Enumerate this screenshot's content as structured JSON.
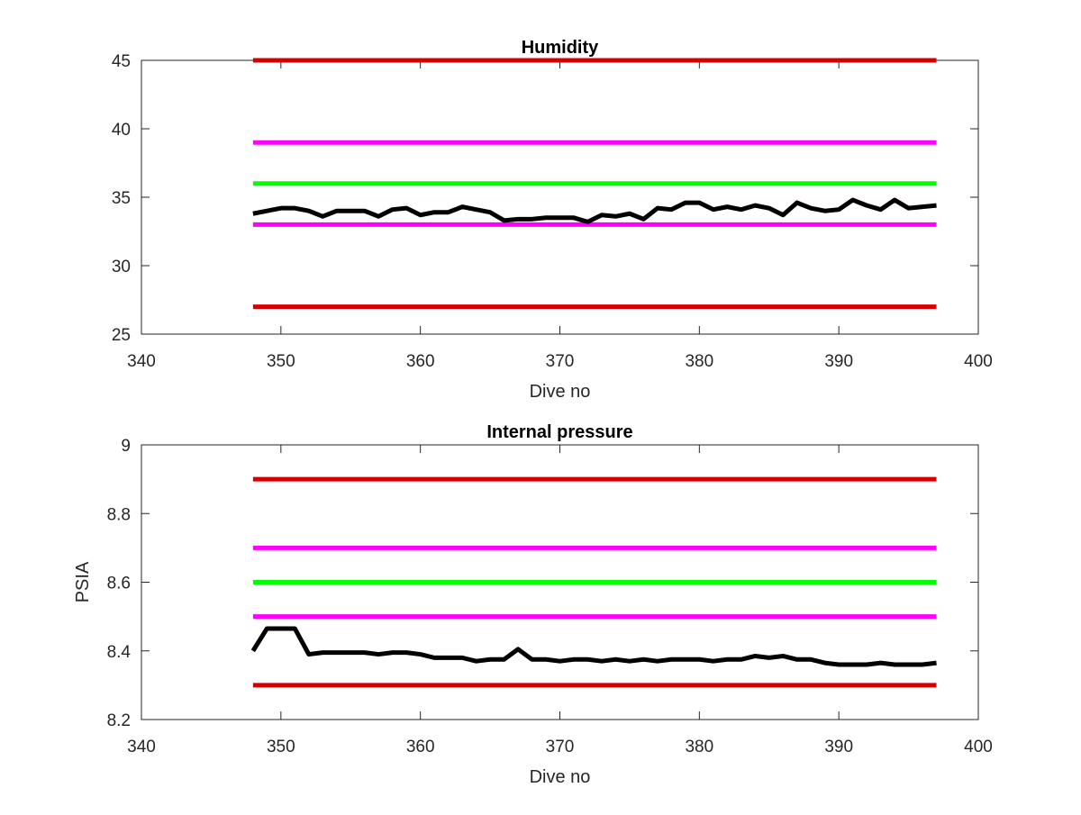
{
  "chart_data": [
    {
      "type": "line",
      "title": "Humidity",
      "xlabel": "Dive no",
      "ylabel": "",
      "xlim": [
        340,
        400
      ],
      "ylim": [
        25,
        45
      ],
      "xticks": [
        340,
        350,
        360,
        370,
        380,
        390,
        400
      ],
      "yticks": [
        25,
        30,
        35,
        40,
        45
      ],
      "grid": false,
      "colors": {
        "black": "#000000",
        "red": "#d40000",
        "magenta": "#ff00ff",
        "green": "#00ff00"
      },
      "thresholds": [
        {
          "y": 45,
          "color": "#d40000",
          "x_range": [
            348,
            397
          ]
        },
        {
          "y": 39,
          "color": "#ff00ff",
          "x_range": [
            348,
            397
          ]
        },
        {
          "y": 36,
          "color": "#00ff00",
          "x_range": [
            348,
            397
          ]
        },
        {
          "y": 33,
          "color": "#ff00ff",
          "x_range": [
            348,
            397
          ]
        },
        {
          "y": 27,
          "color": "#d40000",
          "x_range": [
            348,
            397
          ]
        }
      ],
      "series": [
        {
          "color": "#000000",
          "x": [
            348,
            349,
            350,
            351,
            352,
            353,
            354,
            355,
            356,
            357,
            358,
            359,
            360,
            361,
            362,
            363,
            364,
            365,
            366,
            367,
            368,
            369,
            370,
            371,
            372,
            373,
            374,
            375,
            376,
            377,
            378,
            379,
            380,
            381,
            382,
            383,
            384,
            385,
            386,
            387,
            388,
            389,
            390,
            391,
            392,
            393,
            394,
            395,
            396,
            397
          ],
          "y": [
            33.8,
            34.0,
            34.2,
            34.2,
            34.0,
            33.6,
            34.0,
            34.0,
            34.0,
            33.6,
            34.1,
            34.2,
            33.7,
            33.9,
            33.9,
            34.3,
            34.1,
            33.9,
            33.3,
            33.4,
            33.4,
            33.5,
            33.5,
            33.5,
            33.2,
            33.7,
            33.6,
            33.8,
            33.4,
            34.2,
            34.1,
            34.6,
            34.6,
            34.1,
            34.3,
            34.1,
            34.4,
            34.2,
            33.7,
            34.6,
            34.2,
            34.0,
            34.1,
            34.8,
            34.4,
            34.1,
            34.8,
            34.2,
            34.3,
            34.4
          ]
        }
      ]
    },
    {
      "type": "line",
      "title": "Internal pressure",
      "xlabel": "Dive no",
      "ylabel": "PSIA",
      "xlim": [
        340,
        400
      ],
      "ylim": [
        8.2,
        9.0
      ],
      "xticks": [
        340,
        350,
        360,
        370,
        380,
        390,
        400
      ],
      "yticks": [
        8.2,
        8.4,
        8.6,
        8.8,
        9
      ],
      "ytick_labels": [
        "8.2",
        "8.4",
        "8.6",
        "8.8",
        "9"
      ],
      "grid": false,
      "thresholds": [
        {
          "y": 8.9,
          "color": "#d40000",
          "x_range": [
            348,
            397
          ]
        },
        {
          "y": 8.7,
          "color": "#ff00ff",
          "x_range": [
            348,
            397
          ]
        },
        {
          "y": 8.6,
          "color": "#00ff00",
          "x_range": [
            348,
            397
          ]
        },
        {
          "y": 8.5,
          "color": "#ff00ff",
          "x_range": [
            348,
            397
          ]
        },
        {
          "y": 8.3,
          "color": "#d40000",
          "x_range": [
            348,
            397
          ]
        }
      ],
      "series": [
        {
          "color": "#000000",
          "x": [
            348,
            349,
            350,
            351,
            352,
            353,
            354,
            355,
            356,
            357,
            358,
            359,
            360,
            361,
            362,
            363,
            364,
            365,
            366,
            367,
            368,
            369,
            370,
            371,
            372,
            373,
            374,
            375,
            376,
            377,
            378,
            379,
            380,
            381,
            382,
            383,
            384,
            385,
            386,
            387,
            388,
            389,
            390,
            391,
            392,
            393,
            394,
            395,
            396,
            397
          ],
          "y": [
            8.4,
            8.465,
            8.465,
            8.465,
            8.39,
            8.395,
            8.395,
            8.395,
            8.395,
            8.39,
            8.395,
            8.395,
            8.39,
            8.38,
            8.38,
            8.38,
            8.37,
            8.375,
            8.375,
            8.405,
            8.375,
            8.375,
            8.37,
            8.375,
            8.375,
            8.37,
            8.375,
            8.37,
            8.375,
            8.37,
            8.375,
            8.375,
            8.375,
            8.37,
            8.375,
            8.375,
            8.385,
            8.38,
            8.385,
            8.375,
            8.375,
            8.365,
            8.36,
            8.36,
            8.36,
            8.365,
            8.36,
            8.36,
            8.36,
            8.365
          ]
        }
      ]
    }
  ]
}
